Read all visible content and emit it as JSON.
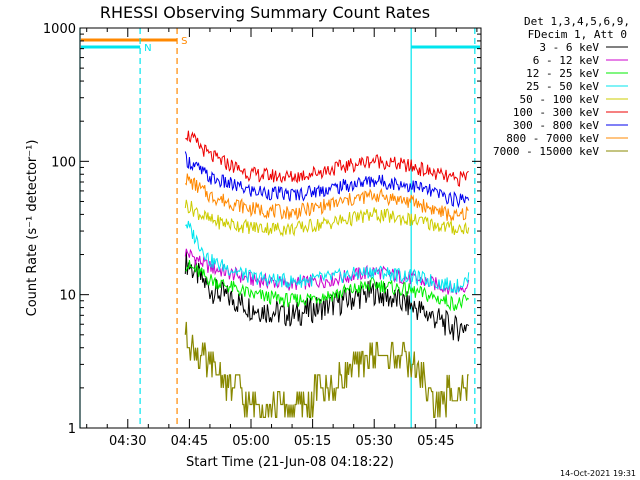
{
  "chart_data": {
    "type": "line",
    "title": "RHESSI Observing Summary Count Rates",
    "xlabel": "Start Time (21-Jun-08 04:18:22)",
    "ylabel": "Count Rate (s⁻¹ detector⁻¹)",
    "y_scale": "log",
    "ylim": [
      1,
      1000
    ],
    "y_ticks": [
      "1",
      "10",
      "100",
      "1000"
    ],
    "xlim": [
      "04:18:22",
      "05:56:00"
    ],
    "x_ticks": [
      "04:30",
      "04:45",
      "05:00",
      "05:15",
      "05:30",
      "05:45"
    ],
    "grid": false,
    "legend_header": [
      "Det 1,3,4,5,6,9,",
      "FDecim 1, Att 0"
    ],
    "series": [
      {
        "name": "3 - 6 keV",
        "color": "#000000",
        "x": [
          "04:44",
          "04:50",
          "05:00",
          "05:10",
          "05:20",
          "05:30",
          "05:40",
          "05:50",
          "05:53"
        ],
        "y": [
          18,
          11,
          8,
          7,
          8.5,
          10.5,
          8,
          5.5,
          6
        ]
      },
      {
        "name": "6 - 12 keV",
        "color": "#cc00cc",
        "x": [
          "04:44",
          "04:50",
          "05:00",
          "05:10",
          "05:20",
          "05:30",
          "05:40",
          "05:50",
          "05:53"
        ],
        "y": [
          21,
          16,
          13,
          12,
          13,
          15,
          13,
          11,
          12
        ]
      },
      {
        "name": "12 - 25 keV",
        "color": "#00ee00",
        "x": [
          "04:44",
          "04:50",
          "05:00",
          "05:10",
          "05:20",
          "05:30",
          "05:40",
          "05:50",
          "05:53"
        ],
        "y": [
          17,
          13,
          10,
          9,
          10,
          12,
          10.5,
          8.5,
          9
        ]
      },
      {
        "name": "25 - 50 keV",
        "color": "#00e5ee",
        "x": [
          "04:44",
          "04:50",
          "05:00",
          "05:10",
          "05:20",
          "05:30",
          "05:40",
          "05:50",
          "05:53"
        ],
        "y": [
          35,
          18,
          13.5,
          12.5,
          13.5,
          15,
          13.5,
          11.5,
          13
        ]
      },
      {
        "name": "50 - 100 keV",
        "color": "#cccc00",
        "x": [
          "04:44",
          "04:50",
          "05:00",
          "05:10",
          "05:20",
          "05:30",
          "05:40",
          "05:50",
          "05:53"
        ],
        "y": [
          48,
          36,
          32,
          31,
          35,
          40,
          36,
          31,
          32
        ]
      },
      {
        "name": "100 - 300 keV",
        "color": "#ee0000",
        "x": [
          "04:44",
          "04:50",
          "05:00",
          "05:10",
          "05:20",
          "05:30",
          "05:40",
          "05:50",
          "05:53"
        ],
        "y": [
          165,
          110,
          80,
          76,
          88,
          102,
          90,
          72,
          80
        ]
      },
      {
        "name": "300 - 800 keV",
        "color": "#0000ee",
        "x": [
          "04:44",
          "04:50",
          "05:00",
          "05:10",
          "05:20",
          "05:30",
          "05:40",
          "05:50",
          "05:53"
        ],
        "y": [
          105,
          75,
          60,
          56,
          63,
          72,
          65,
          51,
          55
        ]
      },
      {
        "name": "800 - 7000 keV",
        "color": "#ff8800",
        "x": [
          "04:44",
          "04:50",
          "05:00",
          "05:10",
          "05:20",
          "05:30",
          "05:40",
          "05:50",
          "05:53"
        ],
        "y": [
          75,
          55,
          44,
          41,
          48,
          56,
          49,
          38,
          42
        ]
      },
      {
        "name": "7000 - 15000 keV",
        "color": "#888800",
        "x": [
          "04:44",
          "04:48",
          "04:52",
          "04:56",
          "05:00",
          "05:10",
          "05:20",
          "05:25",
          "05:30",
          "05:35",
          "05:40",
          "05:45",
          "05:50",
          "05:53"
        ],
        "y": [
          5,
          3.5,
          2.5,
          2,
          1.5,
          1.5,
          2,
          3,
          3.5,
          3.5,
          3,
          1.5,
          2,
          2
        ]
      }
    ],
    "flag_bars": [
      {
        "label": "S",
        "color": "#ff8800",
        "x_start": "04:18:22",
        "x_end": "04:42:00"
      },
      {
        "label": "N",
        "color": "#00e5ee",
        "x_start": "04:18:22",
        "x_end": "04:33:00"
      },
      {
        "label": "N",
        "color": "#00e5ee",
        "x_start": "05:39:00",
        "x_end": "05:56:00"
      }
    ],
    "vertical_markers": [
      {
        "color": "#00e5ee",
        "style": "solid",
        "x": "04:18:22"
      },
      {
        "color": "#00e5ee",
        "style": "dashed",
        "x": "04:33:00"
      },
      {
        "color": "#ff8800",
        "style": "dashed",
        "x": "04:42:00"
      },
      {
        "color": "#00e5ee",
        "style": "solid",
        "x": "05:39:00"
      },
      {
        "color": "#00e5ee",
        "style": "dashed",
        "x": "05:54:30"
      }
    ],
    "timestamp": "14-Oct-2021 19:31"
  }
}
